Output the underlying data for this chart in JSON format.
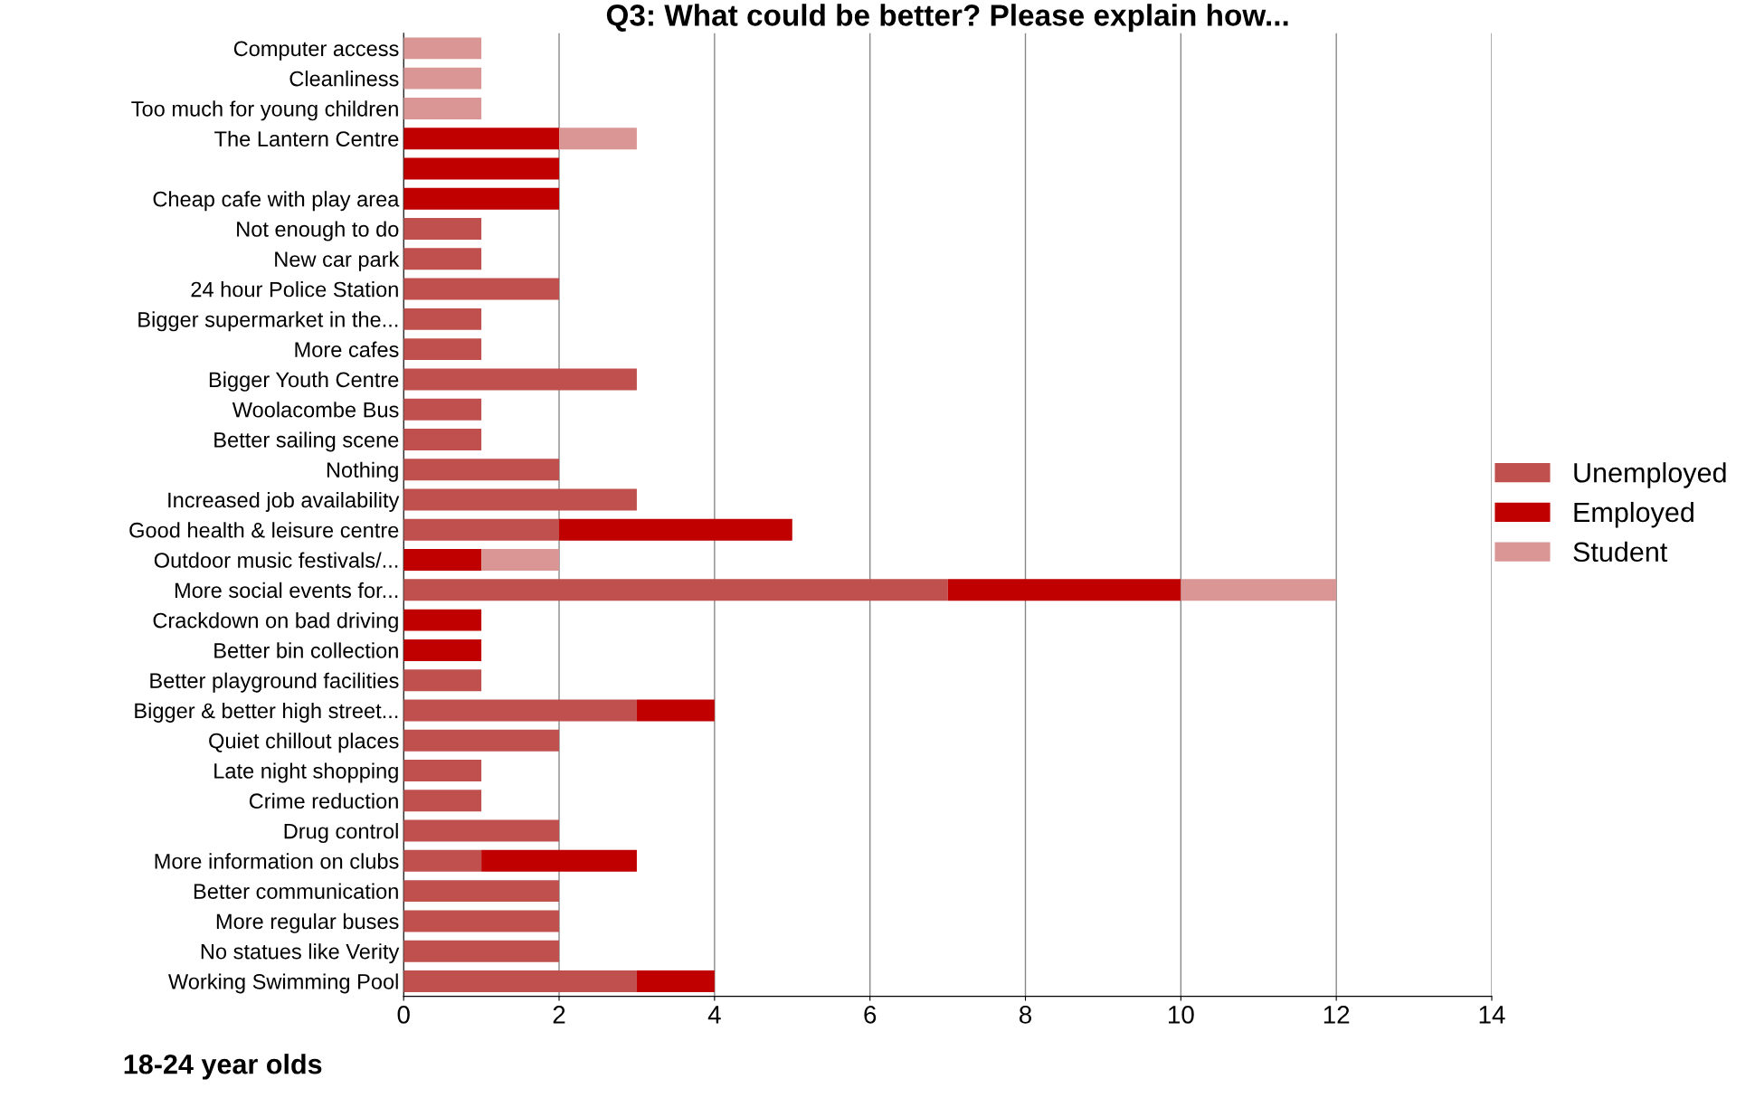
{
  "chart_data": {
    "type": "bar",
    "orientation": "horizontal",
    "stacked": true,
    "title": "Q3: What could be better? Please explain how...",
    "categories": [
      "Computer access",
      "Cleanliness",
      "Too much for young children",
      "The Lantern Centre",
      null,
      "Cheap cafe with play area",
      "Not enough to do",
      "New car park",
      "24 hour Police Station",
      "Bigger supermarket in the...",
      "More cafes",
      "Bigger Youth Centre",
      "Woolacombe Bus",
      "Better sailing scene",
      "Nothing",
      "Increased job availability",
      "Good health & leisure centre",
      "Outdoor music festivals/...",
      "More social events for...",
      "Crackdown on bad driving",
      "Better bin collection",
      "Better playground facilities",
      "Bigger & better high street...",
      "Quiet chillout places",
      "Late night shopping",
      "Crime reduction",
      "Drug control",
      "More information on clubs",
      "Better communication",
      "More regular buses",
      "No statues like Verity",
      "Working Swimming Pool"
    ],
    "series": [
      {
        "name": "Unemployed",
        "color": "#c0504d",
        "values": [
          0,
          0,
          0,
          0,
          0,
          0,
          1,
          1,
          2,
          1,
          1,
          3,
          1,
          1,
          2,
          3,
          2,
          0,
          7,
          0,
          0,
          1,
          3,
          2,
          1,
          1,
          2,
          1,
          2,
          2,
          2,
          3
        ]
      },
      {
        "name": "Employed",
        "color": "#c00000",
        "values": [
          0,
          0,
          0,
          2,
          2,
          2,
          0,
          0,
          0,
          0,
          0,
          0,
          0,
          0,
          0,
          0,
          3,
          1,
          3,
          1,
          1,
          0,
          1,
          0,
          0,
          0,
          0,
          2,
          0,
          0,
          0,
          1
        ]
      },
      {
        "name": "Student",
        "color": "#d99694",
        "values": [
          1,
          1,
          1,
          1,
          0,
          0,
          0,
          0,
          0,
          0,
          0,
          0,
          0,
          0,
          0,
          0,
          0,
          1,
          2,
          0,
          0,
          0,
          0,
          0,
          0,
          0,
          0,
          0,
          0,
          0,
          0,
          0
        ]
      }
    ],
    "xlim": [
      0,
      14
    ],
    "xticks": [
      0,
      2,
      4,
      6,
      8,
      10,
      12,
      14
    ],
    "grid": "x",
    "legend": "right",
    "annotations": [
      "18-24 year olds"
    ]
  }
}
